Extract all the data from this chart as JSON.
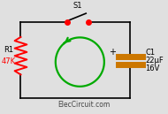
{
  "bg_color": "#e0e0e0",
  "wire_color": "#000000",
  "resistor_color": "#ff0000",
  "capacitor_color": "#cc7700",
  "arrow_color": "#00aa00",
  "switch_dot_color": "#ff0000",
  "text_color": "#000000",
  "watermark_color": "#444444",
  "title": "ElecCircuit.com",
  "r_label": "R1",
  "r_value": "47K",
  "c_label": "C1",
  "c_value": "22μF",
  "c_voltage": "16V",
  "s_label": "S1",
  "figsize": [
    1.9,
    1.29
  ],
  "dpi": 100
}
